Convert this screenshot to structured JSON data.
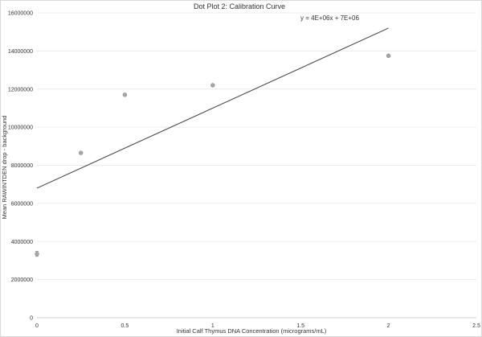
{
  "chart_data": {
    "type": "scatter",
    "title": "Dot Plot 2: Calibration Curve",
    "xlabel": "Initial Calf Thymus DNA Concentration (micrograms/mL)",
    "ylabel": "Mean RAWINTDEN drop - background",
    "xlim": [
      0,
      2.5
    ],
    "ylim": [
      0,
      16000000
    ],
    "x_ticks": [
      0,
      0.5,
      1,
      1.5,
      2,
      2.5
    ],
    "x_tick_labels": [
      "0",
      "0.5",
      "1",
      "1.5",
      "2",
      "2.5"
    ],
    "y_ticks": [
      0,
      2000000,
      4000000,
      6000000,
      8000000,
      10000000,
      12000000,
      14000000,
      16000000
    ],
    "y_tick_labels": [
      "0",
      "2000000",
      "4000000",
      "6000000",
      "8000000",
      "10000000",
      "12000000",
      "14000000",
      "16000000"
    ],
    "grid": "horizontal",
    "points": [
      {
        "x": 0,
        "y": 3350000,
        "error": 130000
      },
      {
        "x": 0.25,
        "y": 8650000
      },
      {
        "x": 0.5,
        "y": 11700000
      },
      {
        "x": 1,
        "y": 12200000
      },
      {
        "x": 2,
        "y": 13750000
      }
    ],
    "trendline": {
      "equation": "y = 4E+06x + 7E+06",
      "x_start": 0,
      "y_start": 6800000,
      "x_end": 2,
      "y_end": 15200000
    },
    "colors": {
      "marker": "#a6a6a6",
      "trendline": "#3f3f3f",
      "grid": "#ececec"
    }
  }
}
